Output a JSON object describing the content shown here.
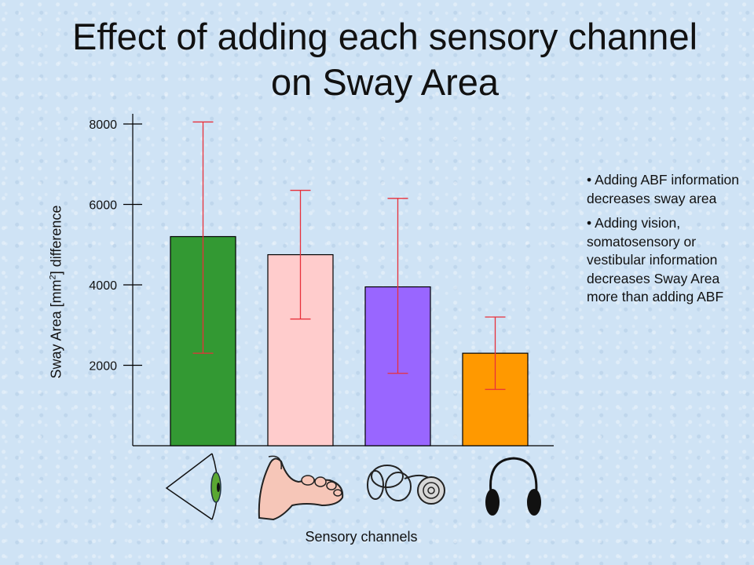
{
  "title": "Effect of adding each sensory channel on Sway Area",
  "chart_data": {
    "type": "bar",
    "title": "Effect of adding each sensory channel on Sway Area",
    "xlabel": "Sensory channels",
    "ylabel_main": "Sway Area [mm",
    "ylabel_sup": "2",
    "ylabel_end": "] difference",
    "ylim": [
      0,
      8000
    ],
    "yticks": [
      2000,
      4000,
      6000,
      8000
    ],
    "ytick_labels": [
      "2000",
      "4000",
      "6000",
      "8000"
    ],
    "categories": [
      "vision",
      "somatosensory",
      "vestibular",
      "ABF"
    ],
    "values": [
      5200,
      4750,
      3950,
      2300
    ],
    "error_low": [
      2300,
      3150,
      1800,
      1400
    ],
    "error_high": [
      8050,
      6350,
      6150,
      3200
    ],
    "colors": [
      "#339933",
      "#ffcccc",
      "#9966ff",
      "#ff9900"
    ],
    "error_color": "#e8303a",
    "category_icons": [
      "eye-icon",
      "foot-icon",
      "inner-ear-icon",
      "headphones-icon"
    ]
  },
  "notes": [
    "Adding ABF information decreases sway area",
    "Adding vision, somatosensory or vestibular information decreases Sway Area more than adding ABF"
  ],
  "bullet": "•"
}
